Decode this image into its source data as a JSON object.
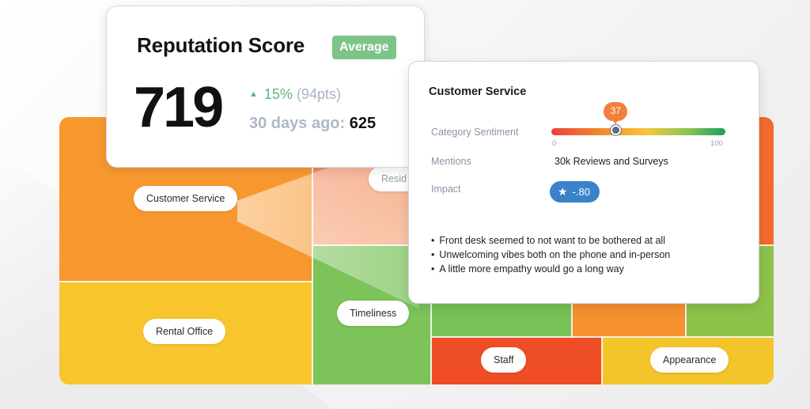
{
  "reputation": {
    "title": "Reputation Score",
    "badge": "Average",
    "score": "719",
    "change_percent": "15%",
    "change_points": "(94pts)",
    "previous_label": "30 days ago:",
    "previous_value": "625"
  },
  "treemap": {
    "tiles": {
      "customer_service": "Customer Service",
      "rental_office": "Rental Office",
      "residents": "Resid",
      "timeliness": "Timeliness",
      "staff": "Staff",
      "appearance": "Appearance"
    }
  },
  "detail": {
    "title": "Customer Service",
    "sentiment_label": "Category Sentiment",
    "sentiment_value": "37",
    "sentiment_fraction": 0.37,
    "sentiment_min": "0",
    "sentiment_max": "100",
    "mentions_label": "Mentions",
    "mentions_value": "30k Reviews and Surveys",
    "impact_label": "Impact",
    "impact_icon": "star-icon",
    "impact_value": "-.80",
    "comments": [
      "Front desk seemed to not want to be bothered at all",
      "Unwelcoming vibes both on the phone and in-person",
      "A little more empathy would go a long way"
    ]
  },
  "colors": {
    "badge_green": "#7cc487",
    "delta_green": "#62b57a",
    "impact_blue": "#3a82c9",
    "orange": "#f7982f",
    "yellow": "#f8c52c",
    "green": "#7cc35a",
    "red": "#ef4d26"
  }
}
